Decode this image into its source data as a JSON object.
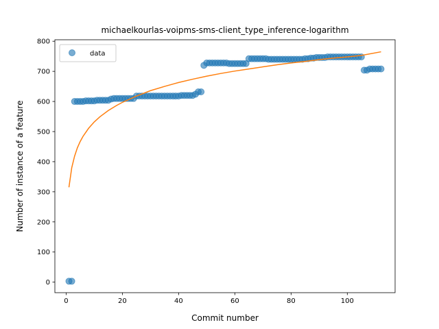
{
  "chart_data": {
    "type": "scatter",
    "title": "michaelkourlas-voipms-sms-client_type_inference-logarithm",
    "xlabel": "Commit number",
    "ylabel": "Number of instance of a feature",
    "xlim": [
      -4,
      117
    ],
    "ylim": [
      -35,
      805
    ],
    "xticks": [
      0,
      20,
      40,
      60,
      80,
      100
    ],
    "yticks": [
      0,
      100,
      200,
      300,
      400,
      500,
      600,
      700,
      800
    ],
    "legend": {
      "placement": "top-left",
      "entries": [
        "data"
      ]
    },
    "series": [
      {
        "name": "data",
        "kind": "scatter",
        "color": "#1f77b4",
        "x": [
          1,
          2,
          3,
          4,
          5,
          6,
          7,
          8,
          9,
          10,
          11,
          12,
          13,
          14,
          15,
          16,
          17,
          18,
          19,
          20,
          21,
          22,
          23,
          24,
          25,
          26,
          27,
          28,
          29,
          30,
          31,
          32,
          33,
          34,
          35,
          36,
          37,
          38,
          39,
          40,
          41,
          42,
          43,
          44,
          45,
          46,
          47,
          48,
          49,
          50,
          51,
          52,
          53,
          54,
          55,
          56,
          57,
          58,
          59,
          60,
          61,
          62,
          63,
          64,
          65,
          66,
          67,
          68,
          69,
          70,
          71,
          72,
          73,
          74,
          75,
          76,
          77,
          78,
          79,
          80,
          81,
          82,
          83,
          84,
          85,
          86,
          87,
          88,
          89,
          90,
          91,
          92,
          93,
          94,
          95,
          96,
          97,
          98,
          99,
          100,
          101,
          102,
          103,
          104,
          105,
          106,
          107,
          108,
          109,
          110,
          111,
          112
        ],
        "y": [
          3,
          3,
          600,
          600,
          600,
          600,
          602,
          602,
          602,
          602,
          604,
          604,
          604,
          604,
          604,
          608,
          610,
          610,
          610,
          610,
          610,
          610,
          610,
          610,
          618,
          618,
          618,
          618,
          618,
          618,
          618,
          618,
          618,
          618,
          618,
          618,
          618,
          618,
          618,
          618,
          620,
          620,
          620,
          620,
          620,
          624,
          632,
          632,
          720,
          728,
          728,
          728,
          728,
          728,
          728,
          728,
          728,
          726,
          726,
          726,
          726,
          726,
          726,
          726,
          742,
          742,
          742,
          742,
          742,
          742,
          742,
          740,
          740,
          740,
          740,
          740,
          740,
          740,
          740,
          740,
          740,
          740,
          740,
          740,
          742,
          742,
          744,
          744,
          746,
          746,
          746,
          746,
          748,
          748,
          748,
          748,
          748,
          748,
          748,
          748,
          748,
          748,
          748,
          748,
          748,
          704,
          704,
          708,
          708,
          708,
          708,
          708
        ]
      },
      {
        "name": "",
        "kind": "line",
        "color": "#ff7f0e",
        "x": [
          1,
          2,
          3,
          4,
          5,
          6,
          8,
          10,
          12,
          15,
          18,
          20,
          25,
          30,
          35,
          40,
          45,
          50,
          55,
          60,
          65,
          70,
          75,
          80,
          85,
          90,
          95,
          100,
          105,
          112
        ],
        "y": [
          315,
          380,
          418,
          446,
          467,
          484,
          511,
          532,
          549,
          570,
          587,
          597,
          618,
          636,
          650,
          663,
          674,
          684,
          693,
          701,
          708,
          715,
          722,
          728,
          733,
          739,
          744,
          748,
          753,
          765
        ]
      }
    ]
  }
}
